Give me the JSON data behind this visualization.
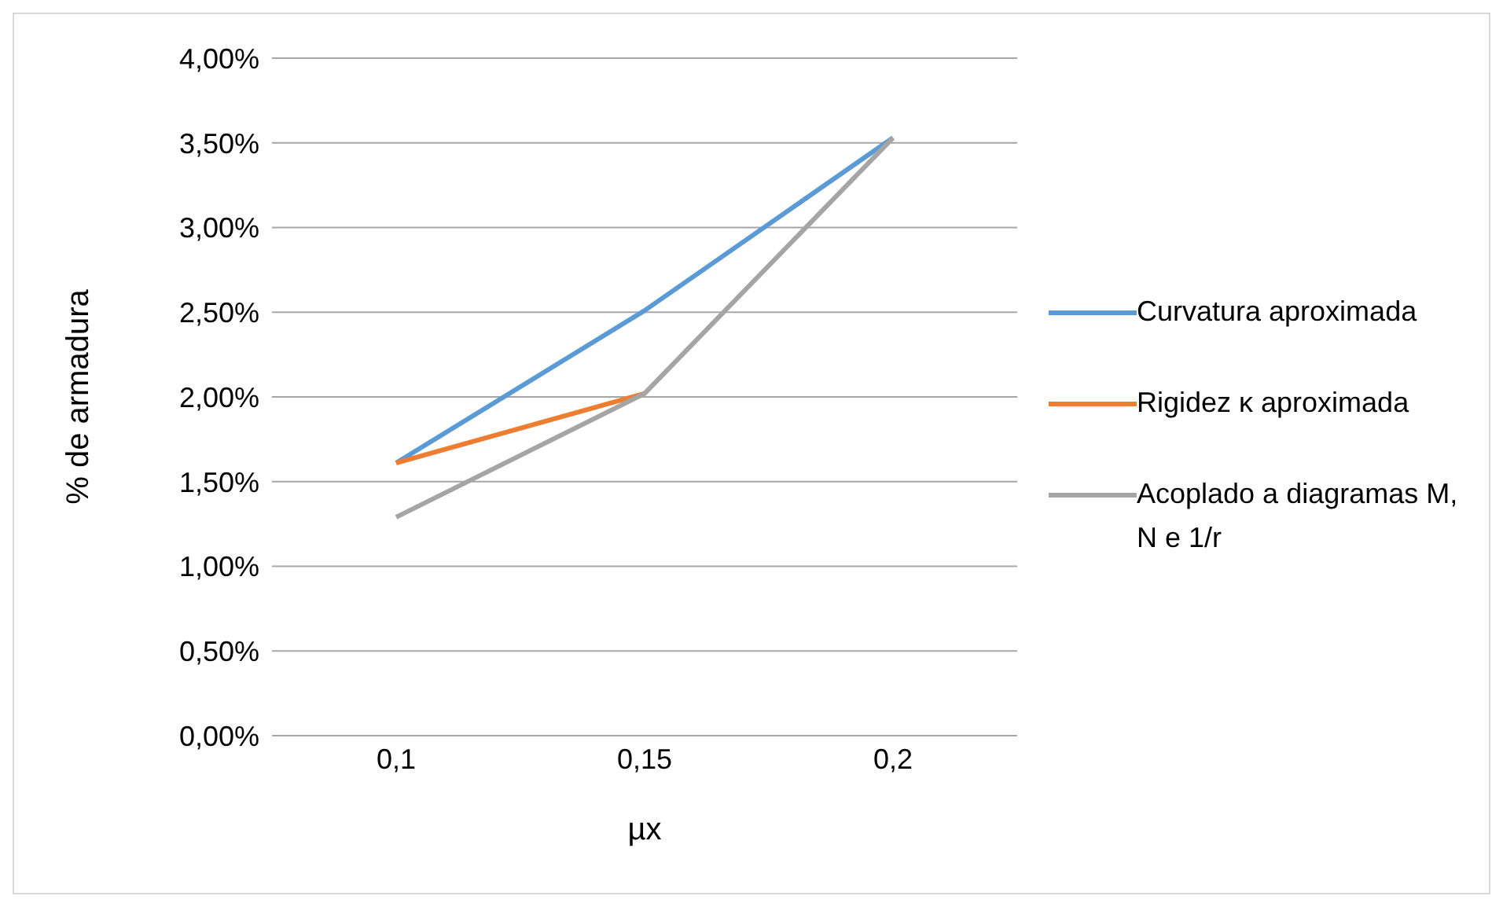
{
  "chart_data": {
    "type": "line",
    "xlabel": "µx",
    "ylabel": "% de armadura",
    "categories": [
      "0,1",
      "0,15",
      "0,2"
    ],
    "series": [
      {
        "name": "Curvatura aproximada",
        "color": "#5b9bd5",
        "values": [
          1.61,
          2.51,
          3.53
        ]
      },
      {
        "name": "Rigidez κ aproximada",
        "color": "#ed7d31",
        "values": [
          1.61,
          2.02,
          null
        ]
      },
      {
        "name": "Acoplado a diagramas M, N e 1/r",
        "color": "#a5a5a5",
        "values": [
          1.29,
          2.02,
          3.53
        ]
      }
    ],
    "ylim": [
      0,
      4
    ],
    "yticks": [
      {
        "value": 0,
        "label": "0,00%"
      },
      {
        "value": 0.5,
        "label": "0,50%"
      },
      {
        "value": 1,
        "label": "1,00%"
      },
      {
        "value": 1.5,
        "label": "1,50%"
      },
      {
        "value": 2,
        "label": "2,00%"
      },
      {
        "value": 2.5,
        "label": "2,50%"
      },
      {
        "value": 3,
        "label": "3,00%"
      },
      {
        "value": 3.5,
        "label": "3,50%"
      },
      {
        "value": 4,
        "label": "4,00%"
      }
    ],
    "grid": "y",
    "legend": "right",
    "marker": "none",
    "line_style": "solid"
  }
}
